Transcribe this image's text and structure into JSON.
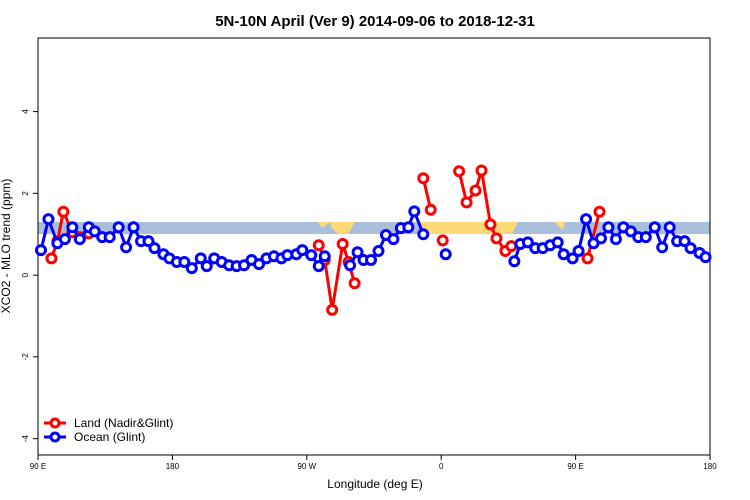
{
  "chart_data": {
    "type": "line",
    "title": "5N-10N April (Ver 9)   2014-09-06 to 2018-12-31",
    "x_label": "Longitude (deg E)",
    "y_label": "XCO2 - MLO trend (ppm)",
    "xlim": [
      90,
      540
    ],
    "ylim": [
      -4.4,
      5.8
    ],
    "xticks": [
      {
        "value": 90,
        "label": "90 E"
      },
      {
        "value": 180,
        "label": "180"
      },
      {
        "value": 270,
        "label": "90 W"
      },
      {
        "value": 360,
        "label": "0"
      },
      {
        "value": 450,
        "label": "90 E"
      },
      {
        "value": 540,
        "label": "180"
      }
    ],
    "yticks": [
      -4,
      -2,
      0,
      2,
      4
    ],
    "legend": "bottom-left",
    "series": [
      {
        "name": "Land (Nadir&Glint)",
        "color": "#ff0000",
        "x": [
          99,
          103,
          107,
          113,
          124,
          null,
          278,
          282,
          287,
          294,
          298,
          302,
          null,
          348,
          353,
          null,
          361,
          null,
          372,
          377,
          383,
          387,
          393,
          397,
          403,
          407,
          null,
          458,
          466
        ],
        "values": [
          0.41,
          0.83,
          1.55,
          1.05,
          1.02,
          null,
          0.73,
          0.37,
          -0.85,
          0.76,
          0.32,
          -0.2,
          null,
          2.37,
          1.6,
          null,
          0.85,
          null,
          2.54,
          1.78,
          2.07,
          2.56,
          1.24,
          0.9,
          0.59,
          0.71,
          null,
          0.41,
          1.55
        ]
      },
      {
        "name": "Ocean (Glint)",
        "color": "#0000ff",
        "x": [
          92,
          97,
          103,
          108,
          113,
          118,
          124,
          128,
          133,
          138,
          144,
          149,
          154,
          159,
          164,
          168,
          174,
          178,
          183,
          188,
          193,
          199,
          203,
          208,
          213,
          218,
          223,
          228,
          233,
          238,
          243,
          248,
          253,
          257,
          263,
          267,
          273,
          278,
          282,
          null,
          299,
          304,
          308,
          313,
          318,
          323,
          328,
          333,
          338,
          342,
          348,
          null,
          363,
          null,
          409,
          413,
          418,
          423,
          428,
          433,
          438,
          442,
          448,
          452,
          457,
          462,
          467,
          472,
          477,
          482,
          487,
          492,
          497,
          503,
          508,
          513,
          518,
          523,
          527,
          533,
          537
        ],
        "values": [
          0.61,
          1.37,
          0.78,
          0.88,
          1.17,
          0.88,
          1.17,
          1.07,
          0.93,
          0.93,
          1.17,
          0.68,
          1.17,
          0.83,
          0.83,
          0.66,
          0.51,
          0.41,
          0.32,
          0.32,
          0.17,
          0.41,
          0.22,
          0.41,
          0.32,
          0.24,
          0.22,
          0.24,
          0.37,
          0.27,
          0.41,
          0.46,
          0.41,
          0.49,
          0.51,
          0.61,
          0.49,
          0.22,
          0.46,
          null,
          0.24,
          0.56,
          0.37,
          0.37,
          0.59,
          0.98,
          0.88,
          1.15,
          1.17,
          1.56,
          1.0,
          null,
          0.51,
          null,
          0.34,
          0.76,
          0.8,
          0.66,
          0.66,
          0.73,
          0.8,
          0.51,
          0.41,
          0.59,
          1.37,
          0.78,
          0.9,
          1.17,
          0.88,
          1.17,
          1.07,
          0.93,
          0.93,
          1.17,
          0.68,
          1.17,
          0.83,
          0.83,
          0.66,
          0.54,
          0.44
        ]
      }
    ]
  }
}
